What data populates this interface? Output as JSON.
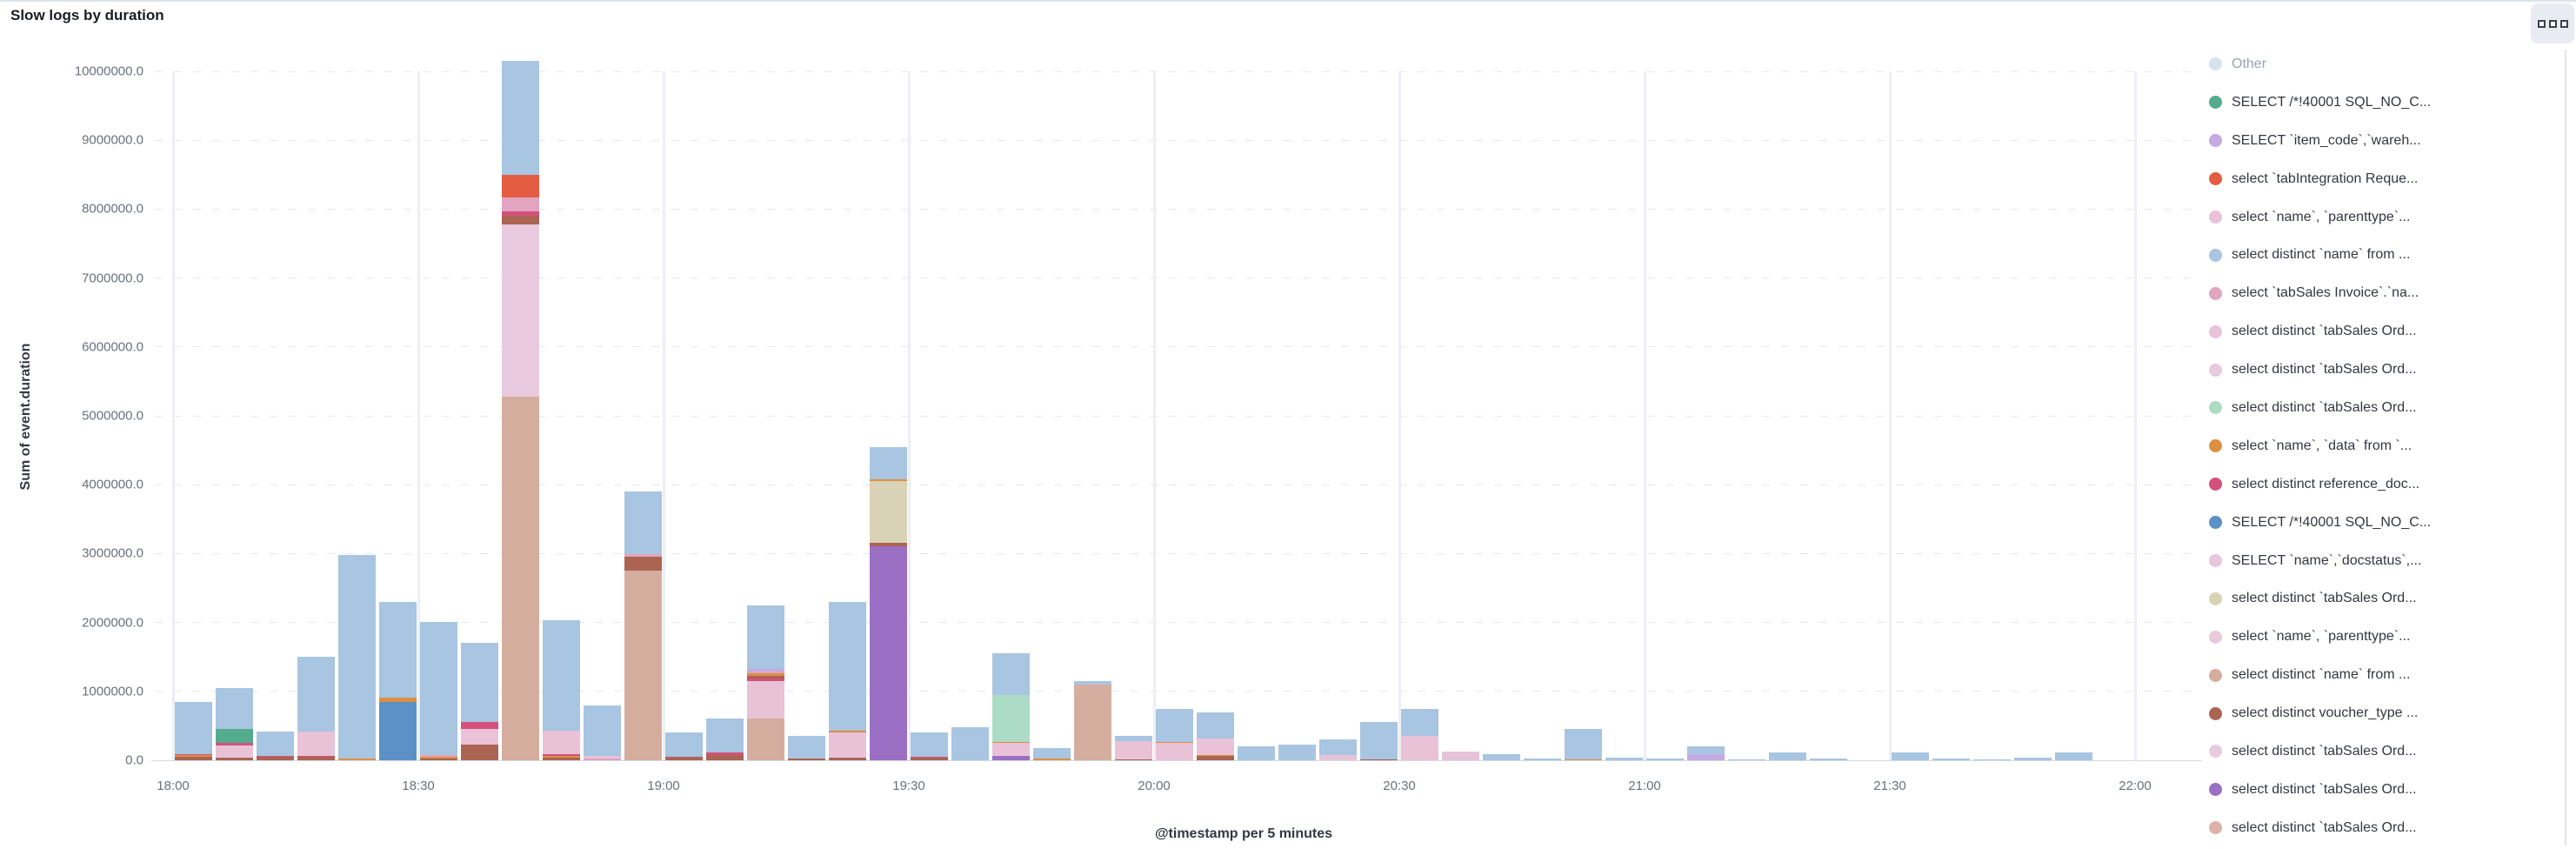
{
  "panel": {
    "title": "Slow logs by duration"
  },
  "chart_data": {
    "type": "bar",
    "stacked": true,
    "title": "Slow logs by duration",
    "xlabel": "@timestamp per 5 minutes",
    "ylabel": "Sum of event.duration",
    "ylim": [
      0,
      10000000
    ],
    "ytick_labels": [
      "0.0",
      "1000000.0",
      "2000000.0",
      "3000000.0",
      "4000000.0",
      "5000000.0",
      "6000000.0",
      "7000000.0",
      "8000000.0",
      "9000000.0",
      "10000000.0"
    ],
    "x_ticks": [
      "18:00",
      "18:30",
      "19:00",
      "19:30",
      "20:00",
      "20:30",
      "21:00",
      "21:30",
      "22:00"
    ],
    "slot_minutes": 5,
    "grid": "horizontal-dashed, vertical-solid",
    "legend_position": "right",
    "series": [
      {
        "label": "Other",
        "color": "#d8e2ee",
        "muted": true
      },
      {
        "label": "SELECT /*!40001 SQL_NO_C...",
        "color": "#54ab8e"
      },
      {
        "label": "SELECT `item_code`,`wareh...",
        "color": "#c3abe2"
      },
      {
        "label": "select `tabIntegration Reque...",
        "color": "#e45c41"
      },
      {
        "label": "select `name`, `parenttype`...",
        "color": "#e9c2d7"
      },
      {
        "label": "select distinct `name` from ...",
        "color": "#a8c5e1"
      },
      {
        "label": "select `tabSales Invoice`.`na...",
        "color": "#e2a4c0"
      },
      {
        "label": "select distinct `tabSales Ord...",
        "color": "#e7c3da"
      },
      {
        "label": "select distinct `tabSales Ord...",
        "color": "#e9c9dd"
      },
      {
        "label": "select distinct `tabSales Ord...",
        "color": "#addcc6"
      },
      {
        "label": "select `name`, `data` from `...",
        "color": "#dd8f41"
      },
      {
        "label": "select distinct reference_doc...",
        "color": "#d4517c"
      },
      {
        "label": "SELECT /*!40001 SQL_NO_C...",
        "color": "#5b91c6"
      },
      {
        "label": "SELECT `name`,`docstatus`,...",
        "color": "#e8c7dd"
      },
      {
        "label": "select distinct `tabSales Ord...",
        "color": "#d8d3b6"
      },
      {
        "label": "select `name`, `parenttype`...",
        "color": "#e8c9dc"
      },
      {
        "label": "select distinct `name` from ...",
        "color": "#d5ad9f"
      },
      {
        "label": "select distinct voucher_type ...",
        "color": "#ab6352"
      },
      {
        "label": "select distinct `tabSales Ord...",
        "color": "#e9cade"
      },
      {
        "label": "select distinct `tabSales Ord...",
        "color": "#9b6fc3"
      },
      {
        "label": "select distinct `tabSales Ord...",
        "color": "#dcb3a8"
      }
    ],
    "bars": [
      {
        "t": "18:00",
        "seg": [
          [
            17,
            50000
          ],
          [
            10,
            30000
          ],
          [
            11,
            10000
          ],
          [
            5,
            760000
          ]
        ]
      },
      {
        "t": "18:05",
        "seg": [
          [
            17,
            40000
          ],
          [
            4,
            180000
          ],
          [
            11,
            30000
          ],
          [
            1,
            210000
          ],
          [
            5,
            590000
          ]
        ]
      },
      {
        "t": "18:10",
        "seg": [
          [
            17,
            50000
          ],
          [
            11,
            15000
          ],
          [
            5,
            355000
          ]
        ]
      },
      {
        "t": "18:15",
        "seg": [
          [
            17,
            45000
          ],
          [
            11,
            20000
          ],
          [
            4,
            355000
          ],
          [
            5,
            1080000
          ]
        ]
      },
      {
        "t": "18:20",
        "seg": [
          [
            10,
            25000
          ],
          [
            5,
            2950000
          ]
        ]
      },
      {
        "t": "18:25",
        "seg": [
          [
            12,
            850000
          ],
          [
            10,
            60000
          ],
          [
            5,
            1390000
          ]
        ]
      },
      {
        "t": "18:30",
        "seg": [
          [
            17,
            30000
          ],
          [
            10,
            25000
          ],
          [
            6,
            20000
          ],
          [
            5,
            1930000
          ]
        ]
      },
      {
        "t": "18:35",
        "seg": [
          [
            17,
            230000
          ],
          [
            4,
            220000
          ],
          [
            11,
            110000
          ],
          [
            5,
            1140000
          ]
        ]
      },
      {
        "t": "18:40",
        "seg": [
          [
            16,
            5280000
          ],
          [
            18,
            2500000
          ],
          [
            17,
            120000
          ],
          [
            11,
            70000
          ],
          [
            6,
            200000
          ],
          [
            3,
            330000
          ],
          [
            5,
            1650000
          ]
        ]
      },
      {
        "t": "18:45",
        "seg": [
          [
            17,
            40000
          ],
          [
            10,
            20000
          ],
          [
            11,
            25000
          ],
          [
            4,
            350000
          ],
          [
            5,
            1600000
          ]
        ]
      },
      {
        "t": "18:50",
        "seg": [
          [
            6,
            30000
          ],
          [
            7,
            30000
          ],
          [
            5,
            740000
          ]
        ]
      },
      {
        "t": "18:55",
        "seg": [
          [
            16,
            2750000
          ],
          [
            17,
            200000
          ],
          [
            6,
            40000
          ],
          [
            5,
            910000
          ]
        ]
      },
      {
        "t": "19:00",
        "seg": [
          [
            17,
            50000
          ],
          [
            5,
            350000
          ]
        ]
      },
      {
        "t": "19:05",
        "seg": [
          [
            17,
            80000
          ],
          [
            11,
            30000
          ],
          [
            5,
            490000
          ]
        ]
      },
      {
        "t": "19:10",
        "seg": [
          [
            16,
            600000
          ],
          [
            4,
            550000
          ],
          [
            11,
            40000
          ],
          [
            17,
            40000
          ],
          [
            10,
            30000
          ],
          [
            6,
            30000
          ],
          [
            2,
            30000
          ],
          [
            5,
            930000
          ]
        ]
      },
      {
        "t": "19:15",
        "seg": [
          [
            17,
            30000
          ],
          [
            5,
            320000
          ]
        ]
      },
      {
        "t": "19:20",
        "seg": [
          [
            17,
            40000
          ],
          [
            4,
            360000
          ],
          [
            10,
            30000
          ],
          [
            5,
            1870000
          ]
        ]
      },
      {
        "t": "19:25",
        "seg": [
          [
            19,
            3100000
          ],
          [
            17,
            60000
          ],
          [
            14,
            890000
          ],
          [
            10,
            30000
          ],
          [
            5,
            470000
          ]
        ]
      },
      {
        "t": "19:30",
        "seg": [
          [
            17,
            40000
          ],
          [
            11,
            15000
          ],
          [
            5,
            345000
          ]
        ]
      },
      {
        "t": "19:35",
        "seg": [
          [
            5,
            480000
          ]
        ]
      },
      {
        "t": "19:40",
        "seg": [
          [
            19,
            60000
          ],
          [
            4,
            190000
          ],
          [
            10,
            20000
          ],
          [
            9,
            680000
          ],
          [
            5,
            600000
          ]
        ]
      },
      {
        "t": "19:45",
        "seg": [
          [
            10,
            20000
          ],
          [
            5,
            160000
          ]
        ]
      },
      {
        "t": "19:50",
        "seg": [
          [
            16,
            1100000
          ],
          [
            5,
            50000
          ]
        ]
      },
      {
        "t": "19:55",
        "seg": [
          [
            17,
            15000
          ],
          [
            4,
            260000
          ],
          [
            5,
            75000
          ]
        ]
      },
      {
        "t": "20:00",
        "seg": [
          [
            4,
            250000
          ],
          [
            10,
            15000
          ],
          [
            5,
            480000
          ]
        ]
      },
      {
        "t": "20:05",
        "seg": [
          [
            17,
            60000
          ],
          [
            10,
            20000
          ],
          [
            4,
            240000
          ],
          [
            5,
            380000
          ]
        ]
      },
      {
        "t": "20:10",
        "seg": [
          [
            5,
            200000
          ]
        ]
      },
      {
        "t": "20:15",
        "seg": [
          [
            5,
            230000
          ]
        ]
      },
      {
        "t": "20:20",
        "seg": [
          [
            7,
            80000
          ],
          [
            5,
            220000
          ]
        ]
      },
      {
        "t": "20:25",
        "seg": [
          [
            17,
            15000
          ],
          [
            5,
            545000
          ]
        ]
      },
      {
        "t": "20:30",
        "seg": [
          [
            4,
            350000
          ],
          [
            5,
            400000
          ]
        ]
      },
      {
        "t": "20:35",
        "seg": [
          [
            7,
            130000
          ]
        ]
      },
      {
        "t": "20:40",
        "seg": [
          [
            5,
            90000
          ]
        ]
      },
      {
        "t": "20:45",
        "seg": [
          [
            5,
            30000
          ]
        ]
      },
      {
        "t": "20:50",
        "seg": [
          [
            10,
            12000
          ],
          [
            5,
            440000
          ]
        ]
      },
      {
        "t": "20:55",
        "seg": [
          [
            5,
            40000
          ]
        ]
      },
      {
        "t": "21:00",
        "seg": [
          [
            5,
            30000
          ]
        ]
      },
      {
        "t": "21:05",
        "seg": [
          [
            2,
            90000
          ],
          [
            5,
            110000
          ]
        ]
      },
      {
        "t": "21:10",
        "seg": [
          [
            5,
            15000
          ]
        ]
      },
      {
        "t": "21:15",
        "seg": [
          [
            5,
            110000
          ]
        ]
      },
      {
        "t": "21:20",
        "seg": [
          [
            5,
            20000
          ]
        ]
      },
      {
        "t": "21:25",
        "seg": []
      },
      {
        "t": "21:30",
        "seg": [
          [
            5,
            110000
          ]
        ]
      },
      {
        "t": "21:35",
        "seg": [
          [
            5,
            25000
          ]
        ]
      },
      {
        "t": "21:40",
        "seg": [
          [
            5,
            10000
          ]
        ]
      },
      {
        "t": "21:45",
        "seg": [
          [
            5,
            40000
          ]
        ]
      },
      {
        "t": "21:50",
        "seg": [
          [
            5,
            110000
          ]
        ]
      },
      {
        "t": "21:55",
        "seg": []
      }
    ]
  }
}
